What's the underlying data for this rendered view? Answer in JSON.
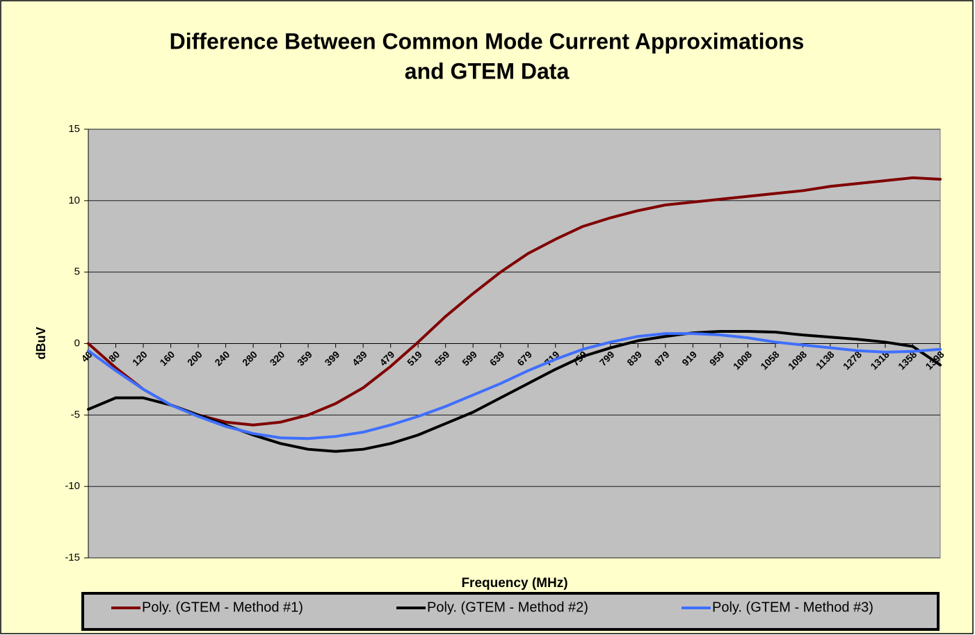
{
  "chart_data": {
    "type": "line",
    "title": [
      "Difference Between Common Mode Current Approximations",
      "and GTEM Data"
    ],
    "x_label": "Frequency (MHz)",
    "y_label": "dBuV",
    "categories": [
      "40",
      "80",
      "120",
      "160",
      "200",
      "240",
      "280",
      "320",
      "359",
      "399",
      "439",
      "479",
      "519",
      "559",
      "599",
      "639",
      "679",
      "719",
      "759",
      "799",
      "839",
      "879",
      "919",
      "959",
      "1008",
      "1058",
      "1098",
      "1138",
      "1278",
      "1318",
      "1358",
      "1398"
    ],
    "ylim": [
      -15,
      15
    ],
    "yticks": [
      -15,
      -10,
      -5,
      0,
      5,
      10,
      15
    ],
    "grid": true,
    "legend": "bottom",
    "series": [
      {
        "name": "Poly. (GTEM - Method #1)",
        "color": "#800000",
        "values": [
          0,
          -1.7,
          -3.2,
          -4.3,
          -5.0,
          -5.5,
          -5.7,
          -5.5,
          -5.0,
          -4.2,
          -3.1,
          -1.6,
          0.1,
          1.9,
          3.5,
          5.0,
          6.3,
          7.3,
          8.2,
          8.8,
          9.3,
          9.7,
          9.9,
          10.1,
          10.3,
          10.5,
          10.7,
          11.0,
          11.2,
          11.4,
          11.6,
          11.5
        ]
      },
      {
        "name": "Poly. (GTEM - Method #2)",
        "color": "#000000",
        "values": [
          -4.6,
          -3.8,
          -3.8,
          -4.3,
          -5.0,
          -5.7,
          -6.4,
          -7.0,
          -7.4,
          -7.55,
          -7.4,
          -7.0,
          -6.4,
          -5.6,
          -4.8,
          -3.8,
          -2.8,
          -1.8,
          -0.9,
          -0.3,
          0.2,
          0.5,
          0.75,
          0.85,
          0.85,
          0.8,
          0.6,
          0.45,
          0.3,
          0.1,
          -0.2,
          -1.5
        ]
      },
      {
        "name": "Poly. (GTEM - Method #3)",
        "color": "#3F6FFF",
        "values": [
          -0.5,
          -1.9,
          -3.2,
          -4.3,
          -5.1,
          -5.8,
          -6.3,
          -6.6,
          -6.65,
          -6.5,
          -6.2,
          -5.7,
          -5.1,
          -4.4,
          -3.6,
          -2.8,
          -1.9,
          -1.1,
          -0.4,
          0.1,
          0.5,
          0.7,
          0.7,
          0.6,
          0.4,
          0.1,
          -0.1,
          -0.3,
          -0.5,
          -0.6,
          -0.55,
          -0.4
        ]
      }
    ]
  }
}
